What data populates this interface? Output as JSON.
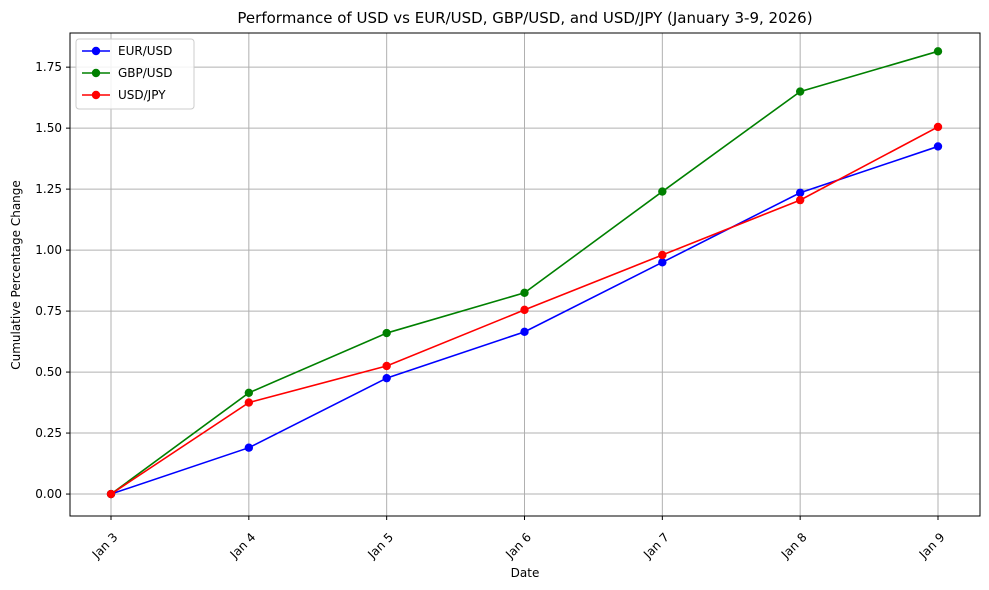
{
  "chart_data": {
    "type": "line",
    "title": "Performance of USD vs EUR/USD, GBP/USD, and USD/JPY (January 3-9, 2026)",
    "xlabel": "Date",
    "ylabel": "Cumulative Percentage Change",
    "categories": [
      "Jan 3",
      "Jan 4",
      "Jan 5",
      "Jan 6",
      "Jan 7",
      "Jan 8",
      "Jan 9"
    ],
    "ylim": [
      -0.09,
      1.89
    ],
    "yticks": [
      "0.00",
      "0.25",
      "0.50",
      "0.75",
      "1.00",
      "1.25",
      "1.50",
      "1.75"
    ],
    "grid": true,
    "legend_position": "top-left",
    "series": [
      {
        "name": "EUR/USD",
        "color": "#0000ff",
        "values": [
          0.0,
          0.19,
          0.475,
          0.665,
          0.95,
          1.235,
          1.425
        ]
      },
      {
        "name": "GBP/USD",
        "color": "#008000",
        "values": [
          0.0,
          0.415,
          0.66,
          0.825,
          1.24,
          1.65,
          1.815
        ]
      },
      {
        "name": "USD/JPY",
        "color": "#ff0000",
        "values": [
          0.0,
          0.375,
          0.525,
          0.755,
          0.98,
          1.205,
          1.505
        ]
      }
    ]
  }
}
